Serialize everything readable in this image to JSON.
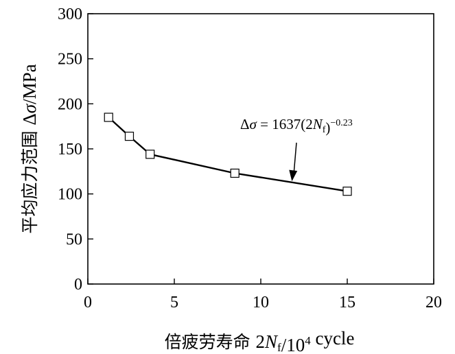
{
  "chart_data": {
    "type": "scatter",
    "title": "",
    "xlabel": {
      "cjk": "倍疲劳寿命",
      "parts": [
        {
          "text": "2",
          "style": "normal"
        },
        {
          "text": "N",
          "style": "italic"
        },
        {
          "text": "f",
          "style": "sub"
        },
        {
          "text": "/10",
          "style": "normal"
        },
        {
          "text": "4",
          "style": "sup"
        },
        {
          "text": " cycle",
          "style": "normal"
        }
      ]
    },
    "ylabel": {
      "cjk": "平均应力范围",
      "parts": [
        {
          "text": "Δ",
          "style": "normal"
        },
        {
          "text": "σ",
          "style": "italic"
        },
        {
          "text": "/MPa",
          "style": "normal"
        }
      ]
    },
    "xlim": [
      0,
      20
    ],
    "ylim": [
      0,
      300
    ],
    "xticks": [
      0,
      5,
      10,
      15,
      20
    ],
    "xtick_labels": [
      "0",
      "5",
      "10",
      "15",
      "20"
    ],
    "yticks": [
      0,
      50,
      100,
      150,
      200,
      250,
      300
    ],
    "ytick_labels": [
      "0",
      "50",
      "100",
      "150",
      "200",
      "250",
      "300"
    ],
    "grid": false,
    "series": [
      {
        "marker": "square",
        "x": [
          1.2,
          2.4,
          3.6,
          8.5,
          15.0
        ],
        "y": [
          185,
          164,
          144,
          123,
          103
        ]
      },
      {
        "line": "solid",
        "fit": "power",
        "coefficient": 1637,
        "exponent": -0.23,
        "x_range": [
          1.2,
          15.0
        ]
      }
    ],
    "annotation": {
      "parts": [
        {
          "text": "Δ",
          "style": "normal"
        },
        {
          "text": "σ",
          "style": "italic"
        },
        {
          "text": " = 1637(2",
          "style": "normal"
        },
        {
          "text": "N",
          "style": "italic"
        },
        {
          "text": "f",
          "style": "sub"
        },
        {
          "text": ")",
          "style": "normal"
        },
        {
          "text": "−0.23",
          "style": "sup"
        }
      ],
      "arrow_to": [
        11.8,
        114
      ]
    }
  }
}
